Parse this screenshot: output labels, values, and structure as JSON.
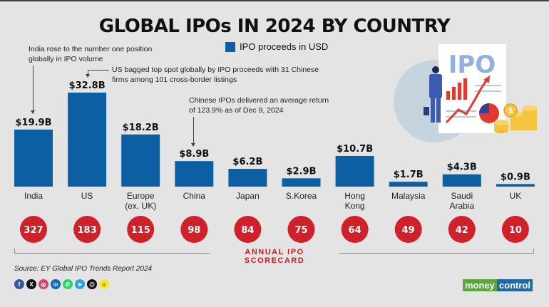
{
  "title": "GLOBAL IPOs IN 2024 BY COUNTRY",
  "legend": {
    "label": "IPO proceeds in USD",
    "color": "#0d5fa3"
  },
  "notes": [
    {
      "text_line1": "India rose to the number one position",
      "text_line2": "globally in IPO volume"
    },
    {
      "text_line1": "US bagged top spot globally by IPO proceeds with 31 Chinese",
      "text_line2": "firms among 101 cross-border listings"
    },
    {
      "text_line1": "Chinese IPOs delivered an average return",
      "text_line2": "of 123.9% as of Dec 9, 2024"
    }
  ],
  "chart_data": {
    "type": "bar",
    "title": "GLOBAL IPOs IN 2024 BY COUNTRY",
    "xlabel": "",
    "ylabel": "IPO proceeds in USD (billions)",
    "ylim": [
      0,
      35
    ],
    "grid": false,
    "legend": "top-center",
    "categories": [
      [
        "India"
      ],
      [
        "US"
      ],
      [
        "Europe",
        "(ex. UK)"
      ],
      [
        "China"
      ],
      [
        "Japan"
      ],
      [
        "S.Korea"
      ],
      [
        "Hong",
        "Kong"
      ],
      [
        "Malaysia"
      ],
      [
        "Saudi",
        "Arabia"
      ],
      [
        "UK"
      ]
    ],
    "series": [
      {
        "name": "IPO proceeds in USD",
        "values": [
          19.9,
          32.8,
          18.2,
          8.9,
          6.2,
          2.9,
          10.7,
          1.7,
          4.3,
          0.9
        ],
        "labels": [
          "$19.9B",
          "$32.8B",
          "$18.2B",
          "$8.9B",
          "$6.2B",
          "$2.9B",
          "$10.7B",
          "$1.7B",
          "$4.3B",
          "$0.9B"
        ]
      },
      {
        "name": "Annual IPO scorecard (number of IPOs)",
        "values": [
          327,
          183,
          115,
          98,
          84,
          75,
          64,
          49,
          42,
          10
        ]
      }
    ]
  },
  "scorecard_label": "ANNUAL IPO SCORECARD",
  "source": "Source: EY Global IPO Trends Report 2024",
  "socials": [
    {
      "name": "facebook",
      "glyph": "f",
      "color": "#3b5998"
    },
    {
      "name": "x",
      "glyph": "X",
      "color": "#111111"
    },
    {
      "name": "instagram",
      "glyph": "◎",
      "color": "#d6407a"
    },
    {
      "name": "linkedin",
      "glyph": "in",
      "color": "#0a66c2"
    },
    {
      "name": "whatsapp",
      "glyph": "✆",
      "color": "#25d366"
    },
    {
      "name": "telegram",
      "glyph": "➤",
      "color": "#2aa3df"
    },
    {
      "name": "threads",
      "glyph": "@",
      "color": "#111111"
    },
    {
      "name": "snapchat",
      "glyph": "☺",
      "color": "#f7e733"
    }
  ],
  "logo": {
    "part1": "money",
    "part2": "control"
  },
  "illustration": {
    "label": "IPO"
  },
  "colors": {
    "bar": "#0d5fa3",
    "circle": "#d0202a",
    "accent": "#c8202a"
  }
}
